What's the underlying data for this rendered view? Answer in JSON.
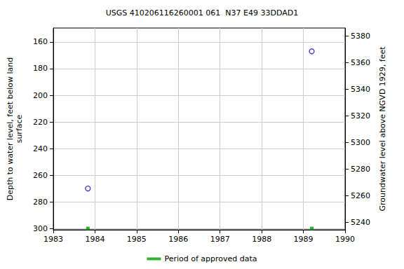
{
  "chart_data": {
    "type": "scatter",
    "title": "USGS 410206116260001 061  N37 E49 33DDAD1",
    "x_label": "",
    "y_label": "Depth to water level, feet below land\nsurface",
    "y2_label": "Groundwater level above NGVD 1929, feet",
    "xlim": [
      1983,
      1990
    ],
    "xticks": [
      1983,
      1984,
      1985,
      1986,
      1987,
      1988,
      1989,
      1990
    ],
    "ylim": [
      301,
      149.5
    ],
    "yticks": [
      160,
      180,
      200,
      220,
      240,
      260,
      280,
      300
    ],
    "y2lim": [
      5234.3,
      5385.8
    ],
    "y2ticks": [
      5240,
      5260,
      5280,
      5300,
      5320,
      5340,
      5360,
      5380
    ],
    "grid": true,
    "legend": "bottom",
    "series": [
      {
        "x": [
          1983.83,
          1989.2
        ],
        "values": [
          270,
          167
        ],
        "color": "#0000cc",
        "marker": "open_circle"
      },
      {
        "name": "Period of approved data",
        "x": [
          1983.83,
          1989.2
        ],
        "values": [
          300,
          300
        ],
        "color": "#00a000",
        "marker": "square"
      }
    ]
  }
}
